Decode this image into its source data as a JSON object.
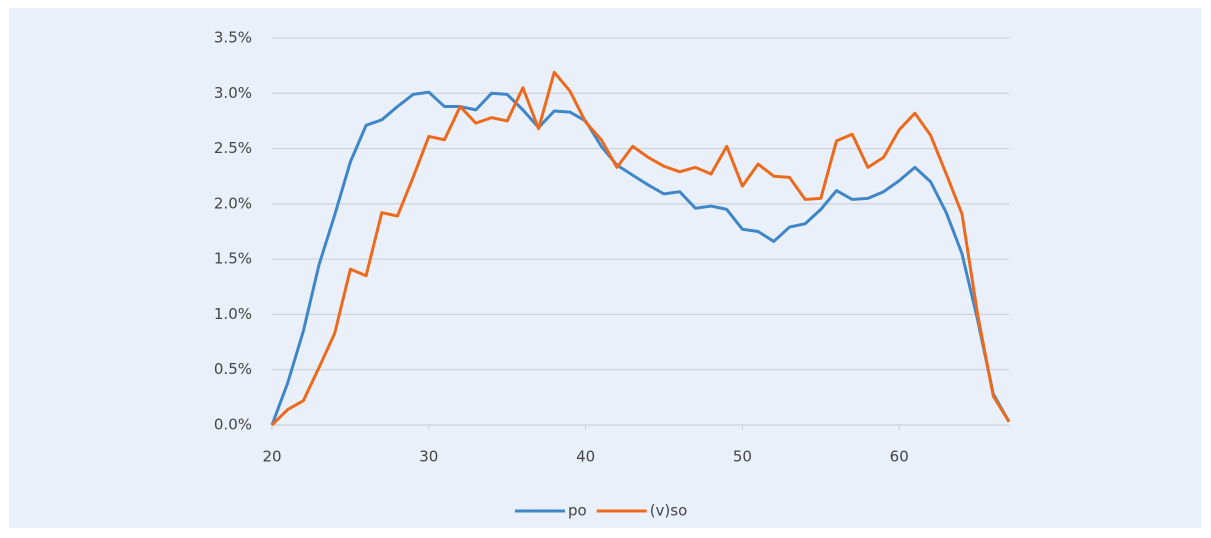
{
  "chart_data": {
    "type": "line",
    "x": [
      20,
      21,
      22,
      23,
      24,
      25,
      26,
      27,
      28,
      29,
      30,
      31,
      32,
      33,
      34,
      35,
      36,
      37,
      38,
      39,
      40,
      41,
      42,
      43,
      44,
      45,
      46,
      47,
      48,
      49,
      50,
      51,
      52,
      53,
      54,
      55,
      56,
      57,
      58,
      59,
      60,
      61,
      62,
      63,
      64,
      65,
      66,
      67
    ],
    "series": [
      {
        "name": "po",
        "color": "#3f86c9",
        "values": [
          0.0,
          0.38,
          0.85,
          1.45,
          1.9,
          2.38,
          2.71,
          2.76,
          2.88,
          2.99,
          3.01,
          2.88,
          2.88,
          2.85,
          3.0,
          2.99,
          2.85,
          2.69,
          2.84,
          2.83,
          2.75,
          2.52,
          2.35,
          2.26,
          2.17,
          2.09,
          2.11,
          1.96,
          1.98,
          1.95,
          1.77,
          1.75,
          1.66,
          1.79,
          1.82,
          1.95,
          2.12,
          2.04,
          2.05,
          2.11,
          2.21,
          2.33,
          2.2,
          1.92,
          1.55,
          0.95,
          0.28,
          0.03
        ]
      },
      {
        "name": "(v)so",
        "color": "#ed6a1c",
        "values": [
          0.0,
          0.14,
          0.22,
          0.52,
          0.83,
          1.41,
          1.35,
          1.92,
          1.89,
          2.24,
          2.61,
          2.58,
          2.88,
          2.73,
          2.78,
          2.75,
          3.05,
          2.68,
          3.19,
          3.02,
          2.74,
          2.58,
          2.33,
          2.52,
          2.42,
          2.34,
          2.29,
          2.33,
          2.27,
          2.52,
          2.16,
          2.36,
          2.25,
          2.24,
          2.04,
          2.05,
          2.57,
          2.63,
          2.33,
          2.42,
          2.67,
          2.82,
          2.62,
          2.27,
          1.91,
          1.0,
          0.26,
          0.03
        ]
      }
    ],
    "xlim": [
      20,
      67
    ],
    "xticks": [
      20,
      30,
      40,
      50,
      60
    ],
    "ylim": [
      0,
      3.5
    ],
    "yticks": [
      {
        "value": 0,
        "label": "0.0%"
      },
      {
        "value": 0.5,
        "label": "0.5%"
      },
      {
        "value": 1,
        "label": "1.0%"
      },
      {
        "value": 1.5,
        "label": "1.5%"
      },
      {
        "value": 2,
        "label": "2.0%"
      },
      {
        "value": 2.5,
        "label": "2.5%"
      },
      {
        "value": 3,
        "label": "3.0%"
      },
      {
        "value": 3.5,
        "label": "3.5%"
      }
    ],
    "grid": true,
    "legend": "bottom"
  }
}
